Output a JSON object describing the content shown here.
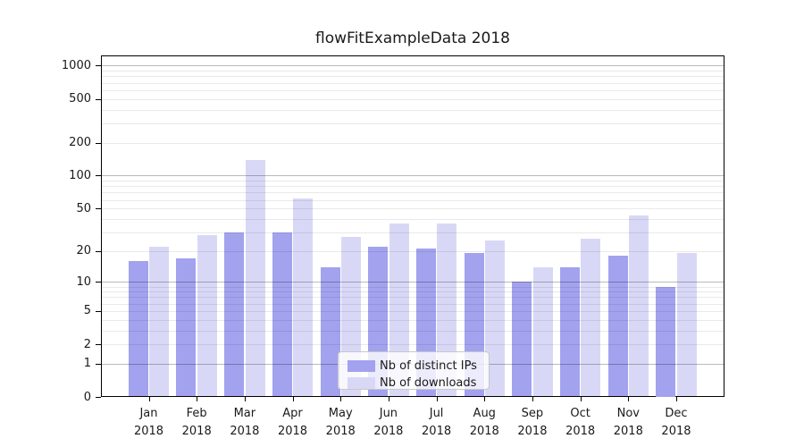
{
  "chart_data": {
    "type": "bar",
    "title": "flowFitExampleData 2018",
    "categories": [
      "Jan",
      "Feb",
      "Mar",
      "Apr",
      "May",
      "Jun",
      "Jul",
      "Aug",
      "Sep",
      "Oct",
      "Nov",
      "Dec"
    ],
    "category_year": "2018",
    "series": [
      {
        "name": "Nb of distinct IPs",
        "color": "#a2a2ee",
        "values": [
          16,
          17,
          30,
          30,
          14,
          22,
          21,
          19,
          10,
          14,
          18,
          9
        ]
      },
      {
        "name": "Nb of downloads",
        "color": "#d8d8f6",
        "values": [
          22,
          28,
          140,
          62,
          27,
          36,
          36,
          25,
          14,
          26,
          43,
          19
        ]
      }
    ],
    "xlabel": "",
    "ylabel": "",
    "yscale": "log1p",
    "y_ticks": [
      0,
      1,
      2,
      5,
      10,
      20,
      50,
      100,
      200,
      500,
      1000
    ],
    "y_minor_grid": [
      2,
      3,
      4,
      5,
      6,
      7,
      8,
      9,
      20,
      30,
      40,
      50,
      60,
      70,
      80,
      90,
      200,
      300,
      400,
      500,
      600,
      700,
      800,
      900
    ],
    "y_major_grid": [
      1,
      10,
      100,
      1000
    ],
    "ylim": [
      0,
      1240
    ],
    "grid": "horizontal major+minor, drawn over bars",
    "legend_position": "inside lower-center",
    "colors": {
      "bar_distinct_ips": "#a2a2ee",
      "bar_downloads": "#d8d8f6",
      "axis_spine": "#000000",
      "text": "#1a1a1a",
      "legend_border": "#c8c8c8"
    }
  }
}
